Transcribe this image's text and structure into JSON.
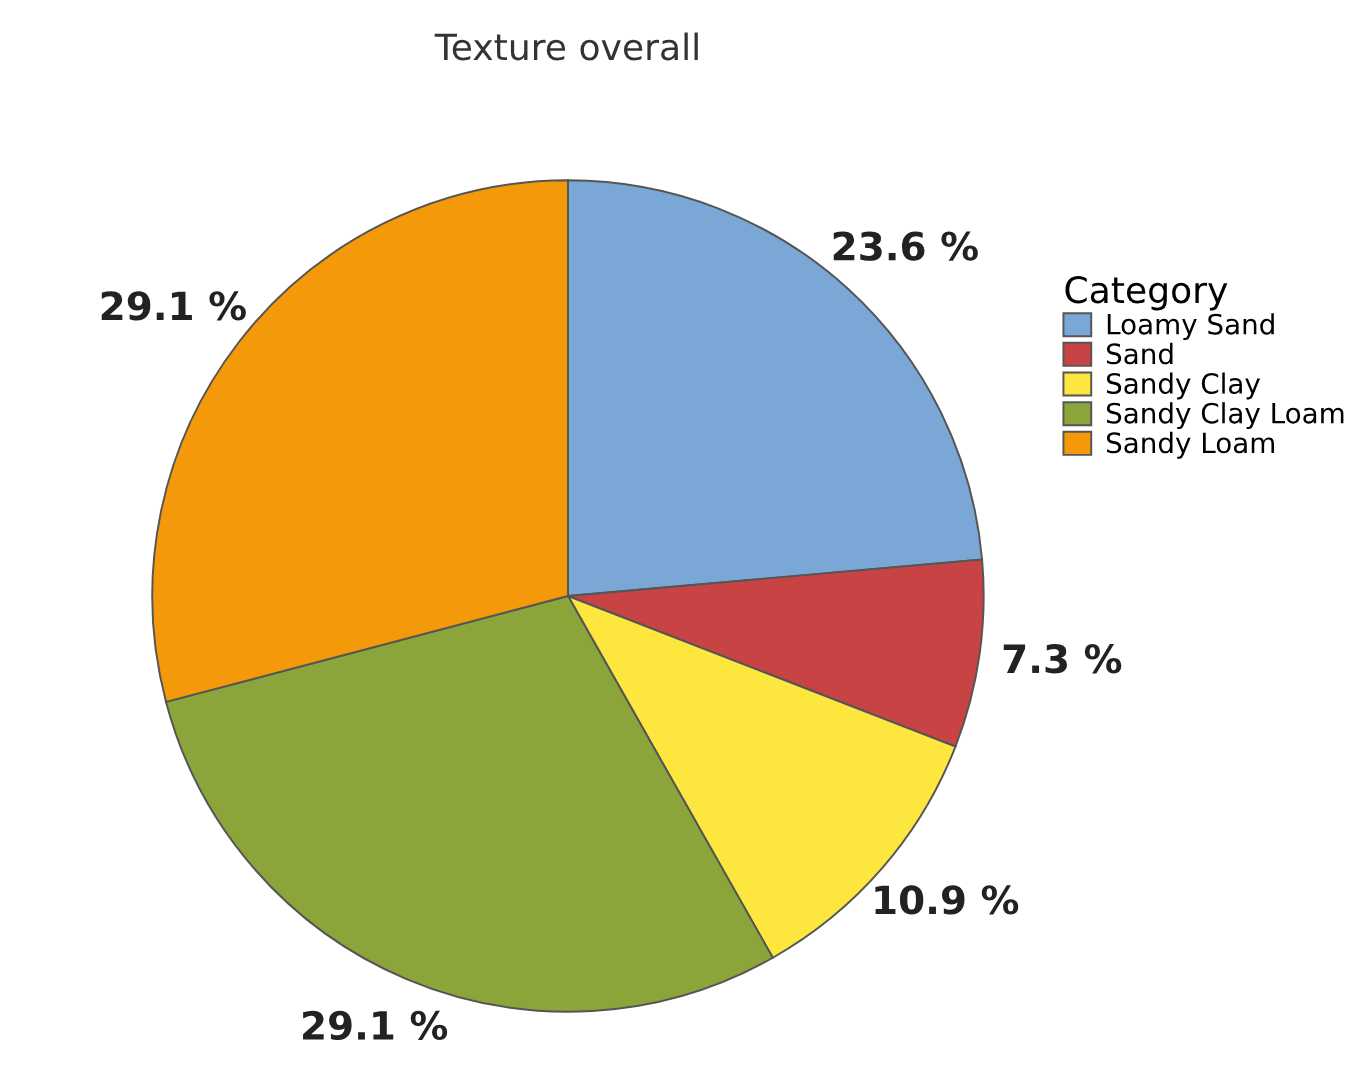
{
  "chart_data": {
    "type": "pie",
    "title": "Texture overall",
    "legend_title": "Category",
    "categories": [
      "Loamy Sand",
      "Sand",
      "Sandy Clay",
      "Sandy Clay Loam",
      "Sandy Loam"
    ],
    "values": [
      23.6,
      7.3,
      10.9,
      29.1,
      29.1
    ],
    "value_labels": [
      "23.6 %",
      "7.3 %",
      "10.9 %",
      "29.1 %",
      "29.1 %"
    ],
    "colors": [
      "#7ba7d7",
      "#c84444",
      "#fde73f",
      "#8ba53a",
      "#f49a0a"
    ],
    "legend": "right"
  }
}
